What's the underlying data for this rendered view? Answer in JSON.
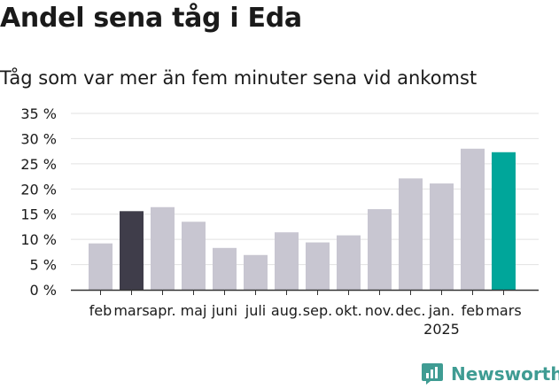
{
  "chart_data": {
    "type": "bar",
    "title": "Andel sena tåg i Eda",
    "subtitle": "Tåg som var mer än fem minuter sena vid ankomst",
    "categories": [
      "feb",
      "mars",
      "apr.",
      "maj",
      "juni",
      "juli",
      "aug.",
      "sep.",
      "okt.",
      "nov.",
      "dec.",
      "jan.",
      "feb",
      "mars"
    ],
    "year_label": "2025",
    "year_label_category_index": 11,
    "values": [
      9.2,
      15.6,
      16.4,
      13.5,
      8.3,
      6.9,
      11.4,
      9.4,
      10.8,
      16.0,
      22.1,
      21.1,
      28.0,
      27.3
    ],
    "highlight_colors": {
      "1": "#3f3d4a",
      "13": "#00a69a"
    },
    "ylim": [
      0,
      35
    ],
    "yticks": [
      0,
      5,
      10,
      15,
      20,
      25,
      30,
      35
    ],
    "ytick_suffix": " %",
    "grid": true,
    "xlabel": "",
    "ylabel": ""
  },
  "colors": {
    "bar_default": "#c8c6d1",
    "bar_previous_year": "#3f3d4a",
    "bar_current": "#00a69a",
    "gridline": "#e2e2e2",
    "axis": "#333333",
    "brand": "#3f9c93"
  },
  "brand": {
    "name": "Newsworthy",
    "icon": "newsworthy-chart-icon"
  }
}
